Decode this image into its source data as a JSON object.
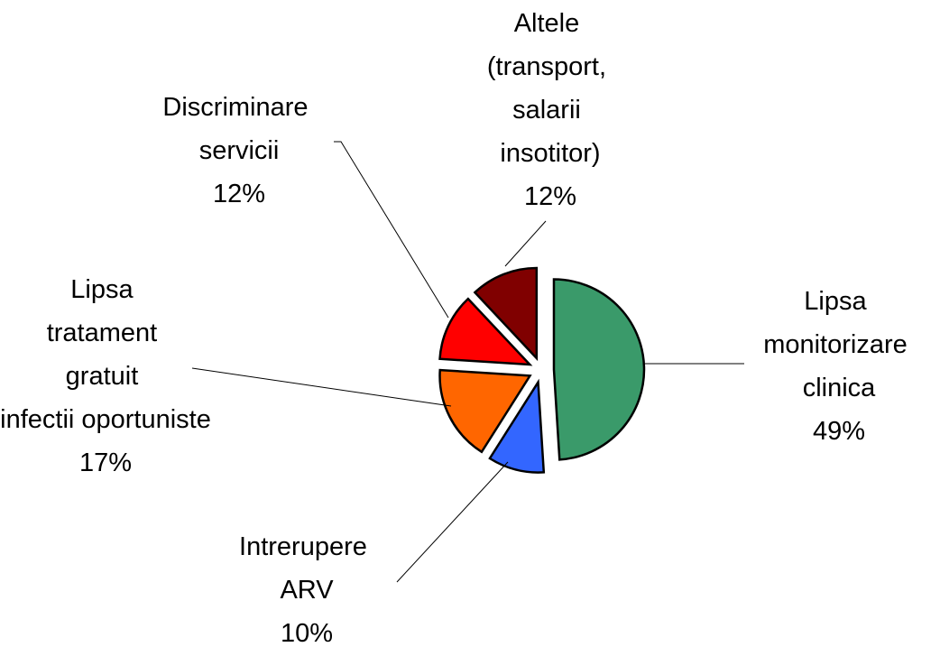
{
  "chart_data": {
    "type": "pie",
    "categories": [
      "Lipsa monitorizare clinica",
      "Intrerupere ARV",
      "Lipsa tratament gratuit infectii oportuniste",
      "Discriminare servicii",
      "Altele (transport, salarii insotitor)"
    ],
    "values": [
      49,
      10,
      17,
      12,
      12
    ],
    "value_labels": [
      "49%",
      "10%",
      "17%",
      "12%",
      "12%"
    ],
    "colors": [
      "#3a9a6a",
      "#3366ff",
      "#ff6600",
      "#ff0000",
      "#800000"
    ]
  }
}
